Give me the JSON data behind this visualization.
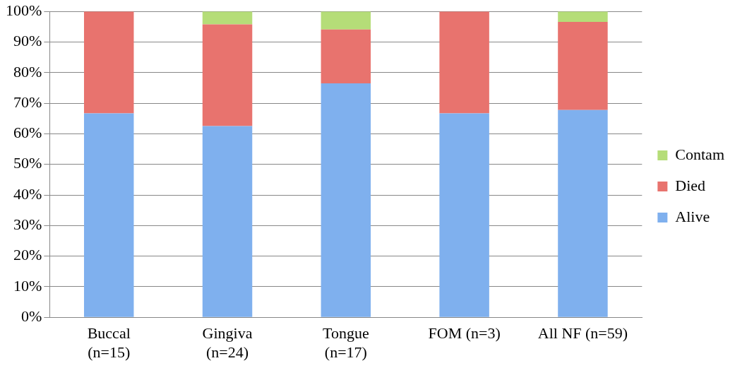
{
  "chart_data": {
    "type": "bar",
    "stacked": true,
    "categories": [
      "Buccal\n(n=15)",
      "Gingiva\n(n=24)",
      "Tongue\n(n=17)",
      "FOM (n=3)",
      "All NF (n=59)"
    ],
    "series": [
      {
        "name": "Alive",
        "color": "#7fb0ee",
        "values": [
          66.7,
          62.5,
          76.5,
          66.7,
          67.8
        ]
      },
      {
        "name": "Died",
        "color": "#e8736e",
        "values": [
          33.3,
          33.3,
          17.6,
          33.3,
          28.8
        ]
      },
      {
        "name": "Contam",
        "color": "#b5dd78",
        "values": [
          0,
          4.2,
          5.9,
          0,
          3.4
        ]
      }
    ],
    "ylim": [
      0,
      100
    ],
    "yticks": [
      {
        "value": 0,
        "label": "0%"
      },
      {
        "value": 10,
        "label": "10%"
      },
      {
        "value": 20,
        "label": "20%"
      },
      {
        "value": 30,
        "label": "30%"
      },
      {
        "value": 40,
        "label": "40%"
      },
      {
        "value": 50,
        "label": "50%"
      },
      {
        "value": 60,
        "label": "60%"
      },
      {
        "value": 70,
        "label": "70%"
      },
      {
        "value": 80,
        "label": "80%"
      },
      {
        "value": 90,
        "label": "90%"
      },
      {
        "value": 100,
        "label": "100%"
      }
    ],
    "grid": "y",
    "legend": "right"
  }
}
